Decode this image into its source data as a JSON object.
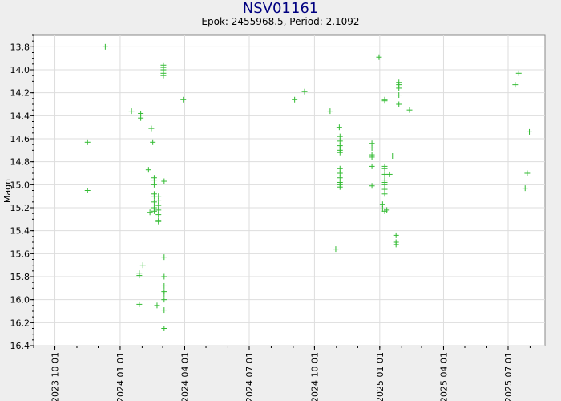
{
  "chart_data": {
    "type": "scatter",
    "title": "NSV01161",
    "subtitle": "Epok: 2455968.5, Period: 2.1092",
    "ylabel": "Magn",
    "xlabel": "",
    "y_inverted": true,
    "ylim": [
      13.7,
      16.4
    ],
    "xlim": [
      "2023-09-01",
      "2025-08-22"
    ],
    "y_ticks": [
      "13.8",
      "14.0",
      "14.2",
      "14.4",
      "14.6",
      "14.8",
      "15.0",
      "15.2",
      "15.4",
      "15.6",
      "15.8",
      "16.0",
      "16.2",
      "16.4"
    ],
    "x_ticks": [
      "2023 10 01",
      "2024 01 01",
      "2024 04 01",
      "2024 07 01",
      "2024 10 01",
      "2025 01 01",
      "2025 04 01",
      "2025 07 01"
    ],
    "grid": true,
    "marker": "+",
    "marker_color": "#33bb33",
    "points": [
      [
        "2023-11-16",
        14.63
      ],
      [
        "2023-11-16",
        15.05
      ],
      [
        "2023-12-11",
        13.8
      ],
      [
        "2024-01-17",
        14.36
      ],
      [
        "2024-01-28",
        15.77
      ],
      [
        "2024-01-28",
        15.79
      ],
      [
        "2024-01-28",
        16.04
      ],
      [
        "2024-01-30",
        14.38
      ],
      [
        "2024-01-30",
        14.42
      ],
      [
        "2024-02-02",
        15.7
      ],
      [
        "2024-02-10",
        14.87
      ],
      [
        "2024-02-12",
        15.24
      ],
      [
        "2024-02-14",
        14.51
      ],
      [
        "2024-02-16",
        14.63
      ],
      [
        "2024-02-18",
        14.94
      ],
      [
        "2024-02-18",
        14.96
      ],
      [
        "2024-02-18",
        15.0
      ],
      [
        "2024-02-18",
        15.08
      ],
      [
        "2024-02-18",
        15.1
      ],
      [
        "2024-02-18",
        15.15
      ],
      [
        "2024-02-18",
        15.2
      ],
      [
        "2024-02-18",
        15.23
      ],
      [
        "2024-02-22",
        16.05
      ],
      [
        "2024-02-24",
        15.1
      ],
      [
        "2024-02-24",
        15.14
      ],
      [
        "2024-02-24",
        15.18
      ],
      [
        "2024-02-24",
        15.22
      ],
      [
        "2024-02-24",
        15.26
      ],
      [
        "2024-02-24",
        15.31
      ],
      [
        "2024-02-24",
        15.32
      ],
      [
        "2024-03-02",
        13.96
      ],
      [
        "2024-03-02",
        13.98
      ],
      [
        "2024-03-02",
        14.0
      ],
      [
        "2024-03-02",
        14.01
      ],
      [
        "2024-03-02",
        14.03
      ],
      [
        "2024-03-02",
        14.05
      ],
      [
        "2024-03-03",
        14.97
      ],
      [
        "2024-03-03",
        15.63
      ],
      [
        "2024-03-03",
        15.8
      ],
      [
        "2024-03-03",
        15.88
      ],
      [
        "2024-03-03",
        15.93
      ],
      [
        "2024-03-03",
        15.95
      ],
      [
        "2024-03-03",
        16.0
      ],
      [
        "2024-03-03",
        16.09
      ],
      [
        "2024-03-03",
        16.25
      ],
      [
        "2024-03-30",
        14.26
      ],
      [
        "2024-09-03",
        14.26
      ],
      [
        "2024-09-17",
        14.19
      ],
      [
        "2024-10-23",
        14.36
      ],
      [
        "2024-10-31",
        15.56
      ],
      [
        "2024-11-05",
        14.5
      ],
      [
        "2024-11-06",
        14.58
      ],
      [
        "2024-11-06",
        14.62
      ],
      [
        "2024-11-06",
        14.66
      ],
      [
        "2024-11-06",
        14.68
      ],
      [
        "2024-11-06",
        14.7
      ],
      [
        "2024-11-06",
        14.72
      ],
      [
        "2024-11-06",
        14.86
      ],
      [
        "2024-11-06",
        14.9
      ],
      [
        "2024-11-06",
        14.94
      ],
      [
        "2024-11-06",
        14.98
      ],
      [
        "2024-11-06",
        15.0
      ],
      [
        "2024-11-06",
        15.02
      ],
      [
        "2024-12-21",
        14.64
      ],
      [
        "2024-12-21",
        14.68
      ],
      [
        "2024-12-21",
        14.74
      ],
      [
        "2024-12-21",
        14.76
      ],
      [
        "2024-12-21",
        14.84
      ],
      [
        "2024-12-21",
        15.01
      ],
      [
        "2024-12-31",
        13.89
      ],
      [
        "2025-01-05",
        15.17
      ],
      [
        "2025-01-05",
        15.21
      ],
      [
        "2025-01-08",
        14.26
      ],
      [
        "2025-01-08",
        14.27
      ],
      [
        "2025-01-08",
        14.84
      ],
      [
        "2025-01-08",
        14.86
      ],
      [
        "2025-01-08",
        14.91
      ],
      [
        "2025-01-08",
        14.96
      ],
      [
        "2025-01-08",
        14.98
      ],
      [
        "2025-01-08",
        15.0
      ],
      [
        "2025-01-08",
        15.04
      ],
      [
        "2025-01-08",
        15.08
      ],
      [
        "2025-01-08",
        15.23
      ],
      [
        "2025-01-11",
        15.22
      ],
      [
        "2025-01-15",
        14.91
      ],
      [
        "2025-01-19",
        14.75
      ],
      [
        "2025-01-24",
        15.44
      ],
      [
        "2025-01-24",
        15.5
      ],
      [
        "2025-01-24",
        15.52
      ],
      [
        "2025-01-28",
        14.11
      ],
      [
        "2025-01-28",
        14.13
      ],
      [
        "2025-01-28",
        14.16
      ],
      [
        "2025-01-28",
        14.22
      ],
      [
        "2025-01-28",
        14.3
      ],
      [
        "2025-02-12",
        14.35
      ],
      [
        "2025-07-11",
        14.13
      ],
      [
        "2025-07-16",
        14.03
      ],
      [
        "2025-07-25",
        15.03
      ],
      [
        "2025-07-28",
        14.9
      ],
      [
        "2025-07-31",
        14.54
      ]
    ]
  }
}
